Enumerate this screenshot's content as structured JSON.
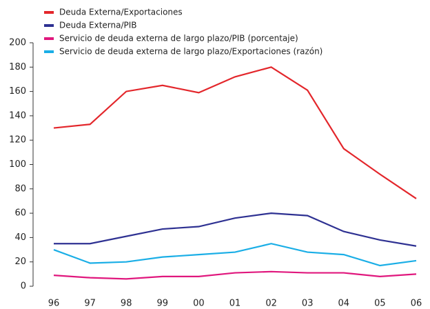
{
  "chart_data": {
    "type": "line",
    "categories": [
      "96",
      "97",
      "98",
      "99",
      "00",
      "01",
      "02",
      "03",
      "04",
      "05",
      "06"
    ],
    "series": [
      {
        "name": "Deuda Externa/Exportaciones",
        "color": "#e3262b",
        "values": [
          130,
          133,
          160,
          165,
          159,
          172,
          180,
          161,
          113,
          92,
          72
        ]
      },
      {
        "name": "Deuda Externa/PIB",
        "color": "#2e3192",
        "values": [
          35,
          35,
          41,
          47,
          49,
          56,
          60,
          58,
          45,
          38,
          33
        ]
      },
      {
        "name": "Servicio de deuda externa de largo plazo/PIB (porcentaje)",
        "color": "#e0177d",
        "values": [
          9,
          7,
          6,
          8,
          8,
          11,
          12,
          11,
          11,
          8,
          10
        ]
      },
      {
        "name": "Servicio de deuda externa de largo plazo/Exportaciones (razón)",
        "color": "#1aaee6",
        "values": [
          30,
          19,
          20,
          24,
          26,
          28,
          35,
          28,
          26,
          17,
          21
        ]
      }
    ],
    "ylim": [
      0,
      200
    ],
    "yticks": [
      0,
      20,
      40,
      60,
      80,
      100,
      120,
      140,
      160,
      180,
      200
    ]
  }
}
